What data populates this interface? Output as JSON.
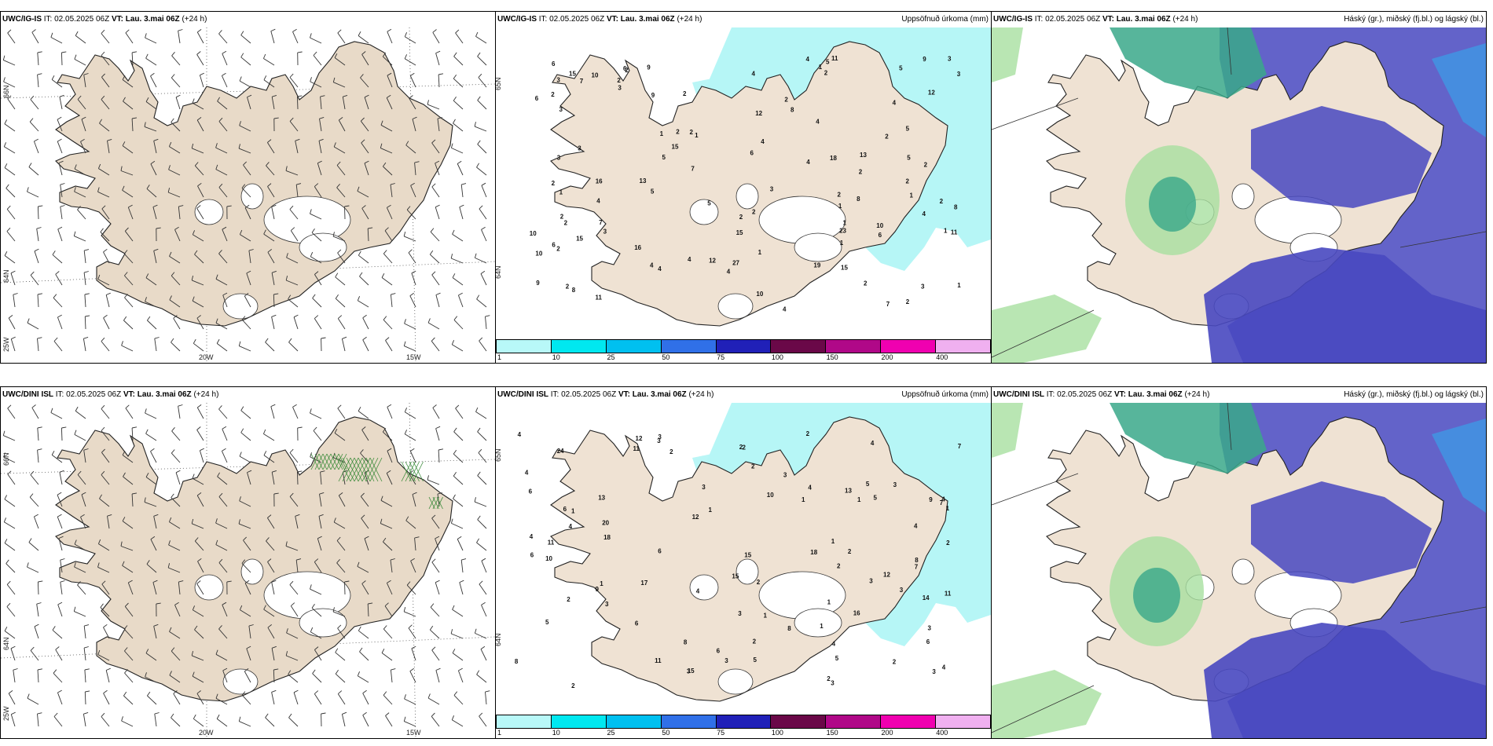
{
  "rows": [
    {
      "wind": {
        "model": "UWC/IG-IS",
        "it": "IT: 02.05.2025 06Z",
        "vt_label": "VT:",
        "vt": "Lau. 3.mai 06Z",
        "lead": "(+24 h)",
        "lat_labels": [
          "66N",
          "64N",
          "25W"
        ],
        "lon_labels": [
          "20W",
          "15W"
        ]
      },
      "precip": {
        "model": "UWC/IG-IS",
        "it": "IT: 02.05.2025 06Z",
        "vt_label": "VT:",
        "vt": "Lau. 3.mai 06Z",
        "lead": "(+24 h)",
        "title": "Uppsöfnuð úrkoma (mm)",
        "lat_labels": [
          "65N",
          "64N"
        ],
        "values": [
          "1",
          "1",
          "2",
          "2",
          "1",
          "2",
          "2",
          "2",
          "1",
          "4",
          "2",
          "2",
          "3",
          "3",
          "4",
          "2",
          "2",
          "3",
          "2",
          "3",
          "3",
          "5",
          "5",
          "4",
          "4",
          "2",
          "1",
          "1",
          "3",
          "2",
          "10",
          "19",
          "15",
          "5",
          "2",
          "6",
          "23",
          "16",
          "27",
          "15",
          "12",
          "11",
          "2",
          "12",
          "10",
          "16",
          "10",
          "15",
          "4",
          "3",
          "8",
          "2",
          "9",
          "2",
          "1",
          "7",
          "4",
          "6",
          "4",
          "10",
          "8",
          "9",
          "4",
          "2",
          "4",
          "3",
          "5",
          "7",
          "13",
          "6",
          "8",
          "9",
          "7",
          "7",
          "6",
          "5",
          "2",
          "4",
          "4",
          "4",
          "1",
          "2",
          "1",
          "2",
          "5",
          "2",
          "6",
          "4",
          "3",
          "12",
          "15",
          "8",
          "6",
          "11",
          "18",
          "3",
          "1",
          "9",
          "10",
          "13",
          "15",
          "11",
          "1",
          "2",
          "5",
          "2"
        ]
      },
      "cloud": {
        "model": "UWC/IG-IS",
        "it": "IT: 02.05.2025 06Z",
        "vt_label": "VT:",
        "vt": "Lau. 3.mai 06Z",
        "lead": "(+24 h)",
        "title": "Háský (gr.), miðský (fj.bl.) og lágský (bl.)"
      }
    },
    {
      "wind": {
        "model": "UWC/DINI ISL",
        "it": "IT: 02.05.2025 06Z",
        "vt_label": "VT:",
        "vt": "Lau. 3.mai 06Z",
        "lead": "(+24 h)",
        "lat_labels": [
          "66N",
          "64N",
          "25W"
        ],
        "lon_labels": [
          "20W",
          "15W"
        ]
      },
      "precip": {
        "model": "UWC/DINI ISL",
        "it": "IT: 02.05.2025 06Z",
        "vt_label": "VT:",
        "vt": "Lau. 3.mai 06Z",
        "lead": "(+24 h)",
        "title": "Uppsöfnuð úrkoma (mm)",
        "lat_labels": [
          "65N",
          "64N"
        ],
        "values": [
          "3",
          "3",
          "3",
          "4",
          "3",
          "2",
          "1",
          "1",
          "2",
          "3",
          "2",
          "1",
          "2",
          "3",
          "2",
          "4",
          "2",
          "2",
          "3",
          "11",
          "15",
          "15",
          "14",
          "17",
          "20",
          "11",
          "10",
          "11",
          "1",
          "9",
          "18",
          "6",
          "7",
          "13",
          "2",
          "4",
          "8",
          "4",
          "3",
          "5",
          "5",
          "5",
          "24",
          "12",
          "11",
          "12",
          "12",
          "6",
          "3",
          "4",
          "4",
          "6",
          "7",
          "13",
          "4",
          "2",
          "1",
          "16",
          "8",
          "6",
          "18",
          "3",
          "1",
          "8",
          "2",
          "2",
          "6",
          "1",
          "5",
          "3",
          "9",
          "1",
          "2",
          "5",
          "4",
          "8",
          "15",
          "6",
          "7",
          "6",
          "4",
          "2",
          "1",
          "3",
          "10",
          "4",
          "3",
          "3",
          "2",
          "4",
          "1"
        ]
      },
      "cloud": {
        "model": "UWC/DINI ISL",
        "it": "IT: 02.05.2025 06Z",
        "vt_label": "VT:",
        "vt": "Lau. 3.mai 06Z",
        "lead": "(+24 h)",
        "title": "Háský (gr.), miðský (fj.bl.) og lágský (bl.)"
      }
    }
  ],
  "colorbar": {
    "levels": [
      "1",
      "10",
      "25",
      "50",
      "75",
      "100",
      "150",
      "200",
      "400"
    ],
    "colors": [
      "#b8f8f8",
      "#00e8f0",
      "#00c0f0",
      "#3070e8",
      "#2020b8",
      "#6a0848",
      "#b00888",
      "#f000b0",
      "#f0b0f0"
    ]
  },
  "colors": {
    "land": "#efe2d3",
    "precip_light": "#b6f6f6",
    "precip_mid": "#30d8e8",
    "high_cloud": "#3aa88a",
    "high_cloud_light": "#a8e0a0",
    "mid_cloud": "#4848c0",
    "low_cloud": "#3aa0e8"
  }
}
